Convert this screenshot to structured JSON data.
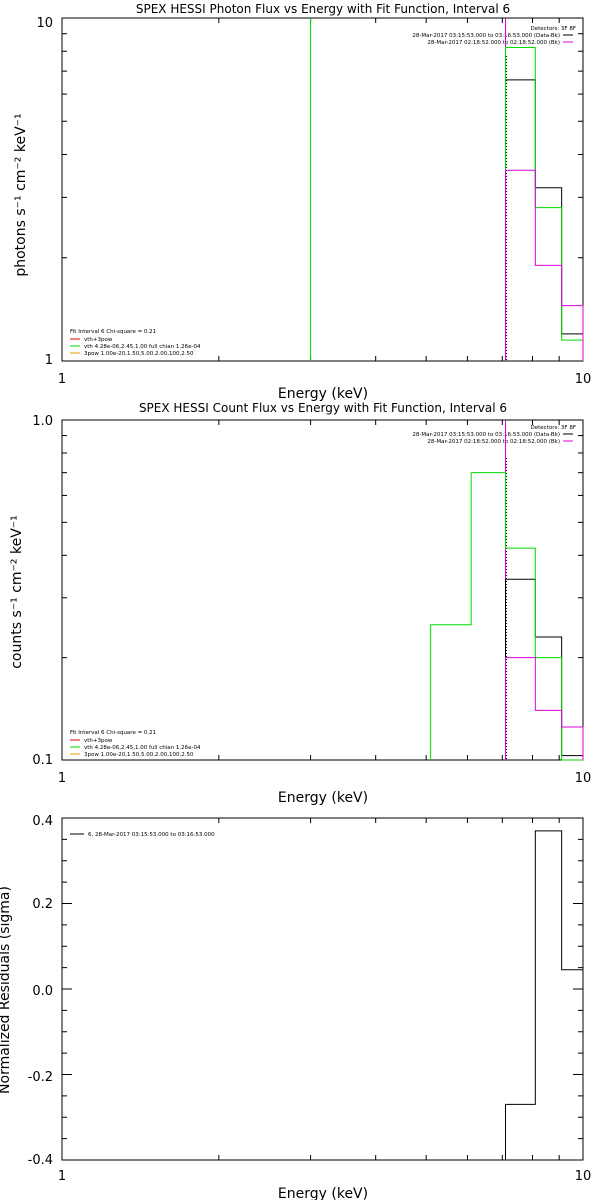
{
  "colors": {
    "black": "#000000",
    "green": "#00dd00",
    "magenta": "#dd00dd",
    "red": "#dd0000",
    "orange": "#ee9900"
  },
  "chart_data": [
    {
      "type": "line",
      "step": true,
      "title": "SPEX HESSI Photon Flux vs Energy with Fit Function, Interval 6",
      "xlabel": "Energy (keV)",
      "ylabel": "photons s⁻¹ cm⁻² keV⁻¹",
      "xscale": "log",
      "yscale": "log",
      "xlim": [
        1,
        10
      ],
      "ylim": [
        1,
        10
      ],
      "xticks": [
        "1",
        "10"
      ],
      "yticks": [
        "1",
        "10"
      ],
      "legend_top": [
        "Detectors: 3F 8F",
        "28-Mar-2017 03:15:53.000 to 03:16:53.000 (Data-Bk)",
        "28-Mar-2017 02:18:52.000 to 02:18:52.000 (Bk)"
      ],
      "legend_bottom": [
        "Fit Interval 6   Chi-square = 0.21",
        "vth+3pow",
        "vth 4.28e-06,2.45,1.00  full chian 1.26e-04",
        "3pow 1.00e-20,1.50,5.00,2.00,100,2.50"
      ],
      "markers": [
        {
          "x": 3.0,
          "color": "green"
        },
        {
          "x": 7.1,
          "color": "magenta"
        }
      ],
      "dotted_marker": 7.1,
      "series": [
        {
          "color": "black",
          "edges": [
            7.1,
            8.1,
            9.1,
            10.0
          ],
          "values": [
            6.6,
            3.2,
            1.2
          ]
        },
        {
          "color": "green",
          "edges": [
            7.1,
            8.1,
            9.1,
            10.0
          ],
          "values": [
            8.2,
            2.8,
            1.15
          ]
        },
        {
          "color": "magenta",
          "edges": [
            7.1,
            8.1,
            9.1,
            10.0
          ],
          "values": [
            3.6,
            1.9,
            1.45
          ]
        }
      ]
    },
    {
      "type": "line",
      "step": true,
      "title": "SPEX HESSI Count Flux vs Energy with Fit Function, Interval 6",
      "xlabel": "Energy (keV)",
      "ylabel": "counts s⁻¹ cm⁻² keV⁻¹",
      "xscale": "log",
      "yscale": "log",
      "xlim": [
        1,
        10
      ],
      "ylim": [
        0.1,
        1.0
      ],
      "xticks": [
        "1",
        "10"
      ],
      "yticks": [
        "0.1",
        "1.0"
      ],
      "legend_top": [
        "Detectors: 3F 8F",
        "28-Mar-2017 03:15:53.000 to 03:16:53.000 (Data-Bk)",
        "28-Mar-2017 02:18:52.000 to 02:18:52.000 (Bk)"
      ],
      "legend_bottom": [
        "Fit Interval 6   Chi-square = 0.21",
        "vth+3pow",
        "vth 4.28e-06,2.45,1.00  full chian 1.26e-04",
        "3pow 1.00e-20,1.50,5.00,2.00,100,2.50"
      ],
      "markers": [
        {
          "x": 7.1,
          "color": "magenta"
        }
      ],
      "dotted_marker": 7.1,
      "series": [
        {
          "color": "black",
          "edges": [
            7.1,
            8.1,
            9.1,
            10.0
          ],
          "values": [
            0.34,
            0.23,
            0.103
          ]
        },
        {
          "color": "green",
          "edges": [
            5.1,
            6.1,
            7.1,
            8.1,
            9.1,
            10.0
          ],
          "values": [
            0.25,
            0.7,
            0.42,
            0.2,
            0.093
          ]
        },
        {
          "color": "magenta",
          "edges": [
            7.1,
            8.1,
            9.1,
            10.0
          ],
          "values": [
            0.2,
            0.14,
            0.125
          ]
        }
      ]
    },
    {
      "type": "line",
      "step": true,
      "title": "",
      "xlabel": "Energy (keV)",
      "ylabel": "Normalized Residuals (sigma)",
      "xscale": "log",
      "yscale": "linear",
      "xlim": [
        1,
        10
      ],
      "ylim": [
        -0.4,
        0.4
      ],
      "xticks": [
        "1",
        "10"
      ],
      "yticks": [
        "-0.4",
        "-0.2",
        "0.0",
        "0.2",
        "0.4"
      ],
      "legend_top": [
        "6, 28-Mar-2017 03:15:53.000 to 03:16:53.000"
      ],
      "series": [
        {
          "color": "black",
          "edges": [
            7.1,
            8.1,
            9.1,
            10.0
          ],
          "values": [
            -0.27,
            0.37,
            0.045
          ]
        }
      ]
    }
  ]
}
